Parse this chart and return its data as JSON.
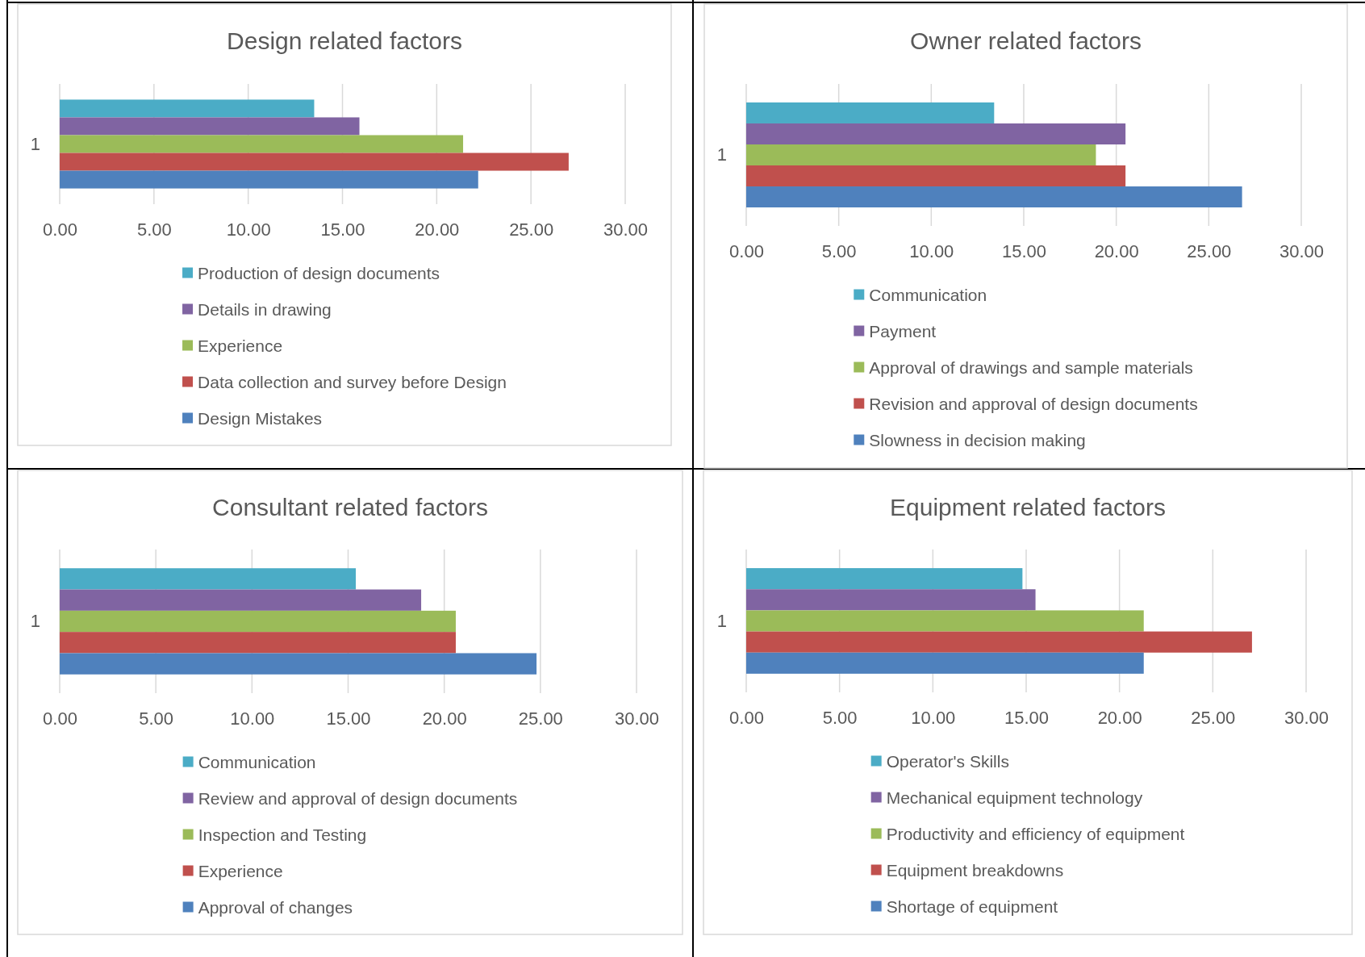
{
  "chart_data": [
    {
      "type": "bar",
      "orientation": "horizontal",
      "title": "Design related factors",
      "categories": [
        "1"
      ],
      "series": [
        {
          "name": "Production of design documents",
          "color": "#4bacc6",
          "values": [
            13.5
          ]
        },
        {
          "name": "Details in drawing",
          "color": "#8064a2",
          "values": [
            15.9
          ]
        },
        {
          "name": "Experience",
          "color": "#9bbb59",
          "values": [
            21.4
          ]
        },
        {
          "name": "Data collection and survey before Design",
          "color": "#c0504d",
          "values": [
            27.0
          ]
        },
        {
          "name": "Design Mistakes",
          "color": "#4f81bd",
          "values": [
            22.2
          ]
        }
      ],
      "xlim": [
        0,
        30
      ],
      "xticks": [
        {
          "value": 0,
          "label": "0.00"
        },
        {
          "value": 5,
          "label": "5.00"
        },
        {
          "value": 10,
          "label": "10.00"
        },
        {
          "value": 15,
          "label": "15.00"
        },
        {
          "value": 20,
          "label": "20.00"
        },
        {
          "value": 25,
          "label": "25.00"
        },
        {
          "value": 30,
          "label": "30.00"
        }
      ],
      "grid": "x",
      "legend": "bottom"
    },
    {
      "type": "bar",
      "orientation": "horizontal",
      "title": "Owner related factors",
      "categories": [
        "1"
      ],
      "series": [
        {
          "name": "Communication",
          "color": "#4bacc6",
          "values": [
            13.4
          ]
        },
        {
          "name": "Payment",
          "color": "#8064a2",
          "values": [
            20.5
          ]
        },
        {
          "name": "Approval of drawings and sample materials",
          "color": "#9bbb59",
          "values": [
            18.9
          ]
        },
        {
          "name": "Revision and approval of design documents",
          "color": "#c0504d",
          "values": [
            20.5
          ]
        },
        {
          "name": "Slowness in decision making",
          "color": "#4f81bd",
          "values": [
            26.8
          ]
        }
      ],
      "xlim": [
        0,
        30
      ],
      "xticks": [
        {
          "value": 0,
          "label": "0.00"
        },
        {
          "value": 5,
          "label": "5.00"
        },
        {
          "value": 10,
          "label": "10.00"
        },
        {
          "value": 15,
          "label": "15.00"
        },
        {
          "value": 20,
          "label": "20.00"
        },
        {
          "value": 25,
          "label": "25.00"
        },
        {
          "value": 30,
          "label": "30.00"
        }
      ],
      "grid": "x",
      "legend": "bottom"
    },
    {
      "type": "bar",
      "orientation": "horizontal",
      "title": "Consultant related factors",
      "categories": [
        "1"
      ],
      "series": [
        {
          "name": "Communication",
          "color": "#4bacc6",
          "values": [
            15.4
          ]
        },
        {
          "name": "Review and approval of design documents",
          "color": "#8064a2",
          "values": [
            18.8
          ]
        },
        {
          "name": "Inspection and Testing",
          "color": "#9bbb59",
          "values": [
            20.6
          ]
        },
        {
          "name": "Experience",
          "color": "#c0504d",
          "values": [
            20.6
          ]
        },
        {
          "name": "Approval of changes",
          "color": "#4f81bd",
          "values": [
            24.8
          ]
        }
      ],
      "xlim": [
        0,
        30
      ],
      "xticks": [
        {
          "value": 0,
          "label": "0.00"
        },
        {
          "value": 5,
          "label": "5.00"
        },
        {
          "value": 10,
          "label": "10.00"
        },
        {
          "value": 15,
          "label": "15.00"
        },
        {
          "value": 20,
          "label": "20.00"
        },
        {
          "value": 25,
          "label": "25.00"
        },
        {
          "value": 30,
          "label": "30.00"
        }
      ],
      "grid": "x",
      "legend": "bottom"
    },
    {
      "type": "bar",
      "orientation": "horizontal",
      "title": "Equipment related factors",
      "categories": [
        "1"
      ],
      "series": [
        {
          "name": "Operator's Skills",
          "color": "#4bacc6",
          "values": [
            14.8
          ]
        },
        {
          "name": "Mechanical equipment technology",
          "color": "#8064a2",
          "values": [
            15.5
          ]
        },
        {
          "name": "Productivity and efficiency of equipment",
          "color": "#9bbb59",
          "values": [
            21.3
          ]
        },
        {
          "name": "Equipment breakdowns",
          "color": "#c0504d",
          "values": [
            27.1
          ]
        },
        {
          "name": "Shortage of equipment",
          "color": "#4f81bd",
          "values": [
            21.3
          ]
        }
      ],
      "xlim": [
        0,
        30
      ],
      "xticks": [
        {
          "value": 0,
          "label": "0.00"
        },
        {
          "value": 5,
          "label": "5.00"
        },
        {
          "value": 10,
          "label": "10.00"
        },
        {
          "value": 15,
          "label": "15.00"
        },
        {
          "value": 20,
          "label": "20.00"
        },
        {
          "value": 25,
          "label": "25.00"
        },
        {
          "value": 30,
          "label": "30.00"
        }
      ],
      "grid": "x",
      "legend": "bottom"
    }
  ]
}
